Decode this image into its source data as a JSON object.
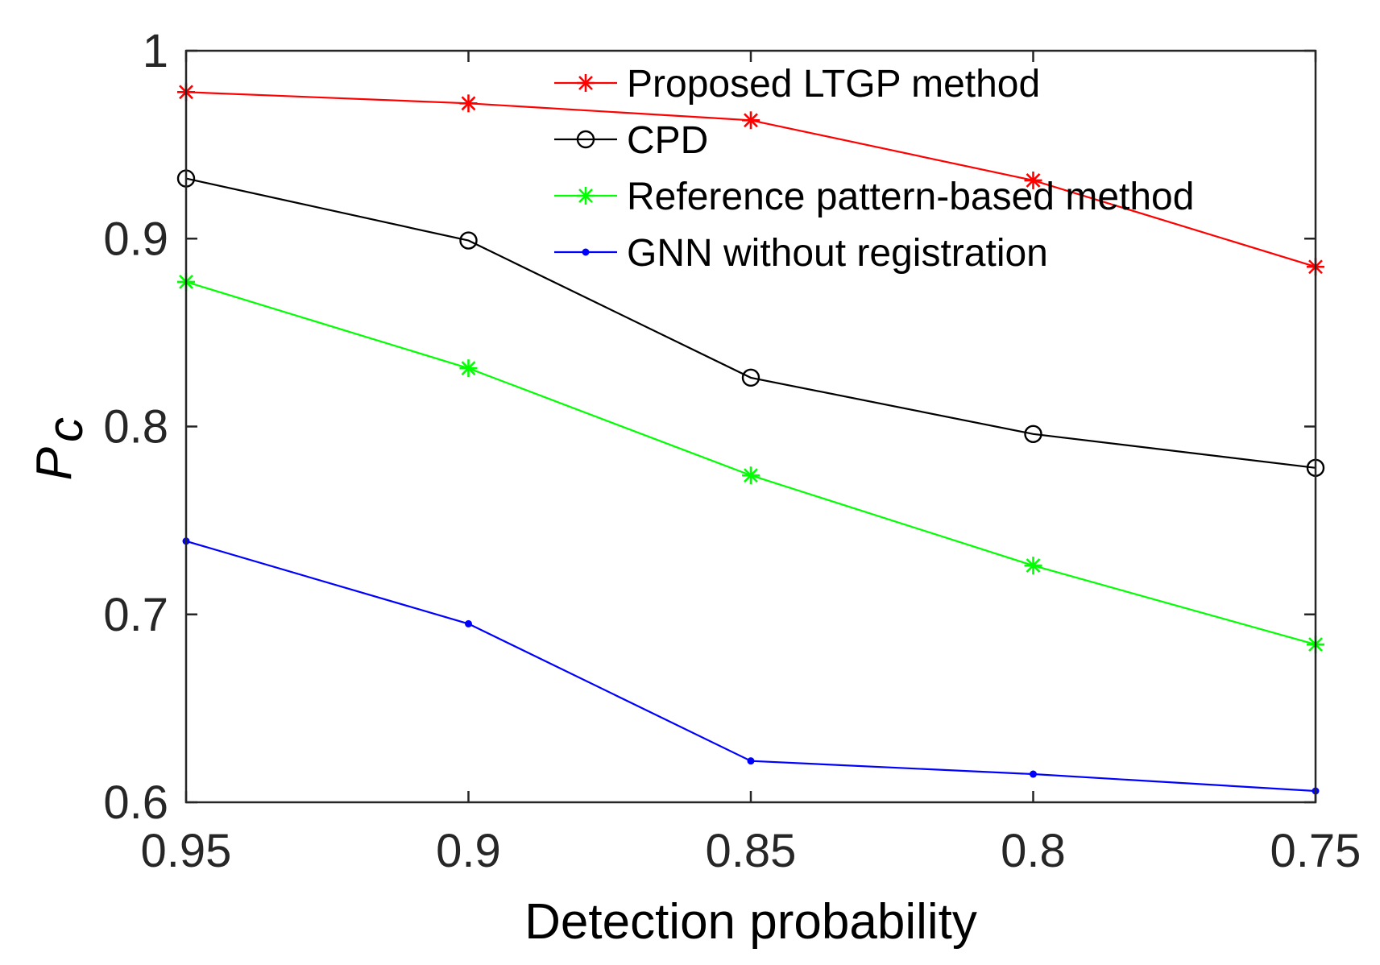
{
  "chart_data": {
    "type": "line",
    "x": [
      0.95,
      0.9,
      0.85,
      0.8,
      0.75
    ],
    "x_tick_labels": [
      "0.95",
      "0.9",
      "0.85",
      "0.8",
      "0.75"
    ],
    "y_tick_values": [
      0.6,
      0.7,
      0.8,
      0.9,
      1
    ],
    "y_tick_labels": [
      "0.6",
      "0.7",
      "0.8",
      "0.9",
      "1"
    ],
    "xlim": [
      0.95,
      0.75
    ],
    "ylim": [
      0.6,
      1.0
    ],
    "xlabel": "Detection probability",
    "ylabel_main": "P",
    "ylabel_sub": "c",
    "grid": false,
    "legend_position": "top-right",
    "series": [
      {
        "name": "Proposed LTGP method",
        "values": [
          0.978,
          0.972,
          0.963,
          0.931,
          0.885
        ],
        "color": "#ff0000",
        "marker": "asterisk"
      },
      {
        "name": "CPD",
        "values": [
          0.932,
          0.899,
          0.826,
          0.796,
          0.778
        ],
        "color": "#000000",
        "marker": "circle"
      },
      {
        "name": "Reference pattern-based method",
        "values": [
          0.877,
          0.831,
          0.774,
          0.726,
          0.684
        ],
        "color": "#00ff00",
        "marker": "asterisk"
      },
      {
        "name": "GNN without registration",
        "values": [
          0.739,
          0.695,
          0.622,
          0.615,
          0.606
        ],
        "color": "#0000ff",
        "marker": "dot"
      }
    ]
  }
}
